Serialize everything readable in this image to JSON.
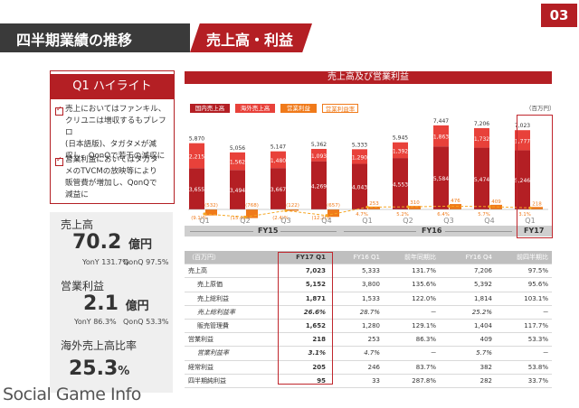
{
  "header": {
    "title": "四半期業績の推移",
    "subtitle": "売上高・利益",
    "page_number": "03"
  },
  "highlight": {
    "heading": "Q1 ハイライト",
    "items": [
      [
        "売上においてはファンキル、",
        "クリユニは増収するもプレフロ",
        "(日本語版)、タガタメが減",
        "収し、QonQで若干の減収に"
      ],
      [
        "営業利益においてはタガタ",
        "メのTVCMの放映等により",
        "販管費が増加し、QonQで",
        "減益に"
      ]
    ]
  },
  "kpis": {
    "sales": {
      "label": "売上高",
      "value": "70.2",
      "unit": "億円",
      "yoy": "YonY 131.7%",
      "qoq": "QonQ 97.5%"
    },
    "op": {
      "label": "営業利益",
      "value": "2.1",
      "unit": "億円",
      "yoy": "YonY 86.3%",
      "qoq": "QonQ 53.3%"
    },
    "overseas": {
      "label": "海外売上高比率",
      "value": "25.3",
      "unit": "%"
    }
  },
  "chart_data": {
    "type": "bar",
    "title": "売上高及び営業利益",
    "unit": "（百万円）",
    "categories": [
      "Q1",
      "Q2",
      "Q3",
      "Q4",
      "Q1",
      "Q2",
      "Q3",
      "Q4",
      "Q1"
    ],
    "fiscal_years": [
      {
        "label": "FY15",
        "quarters": 4
      },
      {
        "label": "FY16",
        "quarters": 4
      },
      {
        "label": "FY17",
        "quarters": 1
      }
    ],
    "series": [
      {
        "name": "国内売上高",
        "color": "#b41f24",
        "values": [
          3655,
          3494,
          3667,
          4269,
          4043,
          4553,
          5584,
          5474,
          5246
        ]
      },
      {
        "name": "海外売上高",
        "color": "#e8413a",
        "values": [
          2215,
          1562,
          1480,
          1093,
          1290,
          1392,
          1863,
          1732,
          1777
        ]
      },
      {
        "name": "営業利益",
        "color": "#f07a1a",
        "values": [
          -532,
          -768,
          -122,
          -657,
          253,
          310,
          476,
          409,
          218
        ]
      },
      {
        "name": "営業利益率",
        "color": "#f5a623",
        "values": [
          -9.1,
          -15.4,
          -2.4,
          -12.2,
          4.7,
          5.2,
          6.4,
          5.7,
          3.1
        ]
      }
    ],
    "total_labels": [
      "5,870",
      "5,056",
      "5,147",
      "5,362",
      "5,333",
      "5,945",
      "7,447",
      "7,206",
      "7,023"
    ],
    "series_labels": {
      "国内売上高": [
        "3,655",
        "3,494",
        "3,667",
        "4,269",
        "4,043",
        "4,553",
        "5,584",
        "5,474",
        "5,246"
      ],
      "海外売上高": [
        "2,215",
        "1,562",
        "1,480",
        "1,093",
        "1,290",
        "1,392",
        "1,863",
        "1,732",
        "1,777"
      ],
      "営業利益": [
        "(532)",
        "(768)",
        "(122)",
        "(657)",
        "253",
        "310",
        "476",
        "409",
        "218"
      ],
      "営業利益率": [
        "(9.1)%",
        "(15.4)%",
        "(2.4)%",
        "(12.2)%",
        "4.7%",
        "5.2%",
        "6.4%",
        "5.7%",
        "3.1%"
      ]
    }
  },
  "table": {
    "unit": "（百万円）",
    "headers": [
      "FY17 Q1",
      "FY16 Q1",
      "前年同期比",
      "FY16 Q4",
      "前四半期比"
    ],
    "rows": [
      {
        "label": "売上高",
        "indent": false,
        "italic": false,
        "cells": [
          "7,023",
          "5,333",
          "131.7%",
          "7,206",
          "97.5%"
        ]
      },
      {
        "label": "売上原価",
        "indent": true,
        "italic": false,
        "cells": [
          "5,152",
          "3,800",
          "135.6%",
          "5,392",
          "95.6%"
        ]
      },
      {
        "label": "売上総利益",
        "indent": true,
        "italic": false,
        "cells": [
          "1,871",
          "1,533",
          "122.0%",
          "1,814",
          "103.1%"
        ]
      },
      {
        "label": "売上総利益率",
        "indent": true,
        "italic": true,
        "cells": [
          "26.6%",
          "28.7%",
          "－",
          "25.2%",
          "－"
        ]
      },
      {
        "label": "販売管理費",
        "indent": true,
        "italic": false,
        "cells": [
          "1,652",
          "1,280",
          "129.1%",
          "1,404",
          "117.7%"
        ]
      },
      {
        "label": "営業利益",
        "indent": false,
        "italic": false,
        "cells": [
          "218",
          "253",
          "86.3%",
          "409",
          "53.3%"
        ]
      },
      {
        "label": "営業利益率",
        "indent": true,
        "italic": true,
        "cells": [
          "3.1%",
          "4.7%",
          "－",
          "5.7%",
          "－"
        ]
      },
      {
        "label": "経常利益",
        "indent": false,
        "italic": false,
        "cells": [
          "205",
          "246",
          "83.7%",
          "382",
          "53.8%"
        ]
      },
      {
        "label": "四半期純利益",
        "indent": false,
        "italic": false,
        "cells": [
          "95",
          "33",
          "287.8%",
          "282",
          "33.7%"
        ]
      }
    ]
  },
  "watermark": "Social Game Info"
}
